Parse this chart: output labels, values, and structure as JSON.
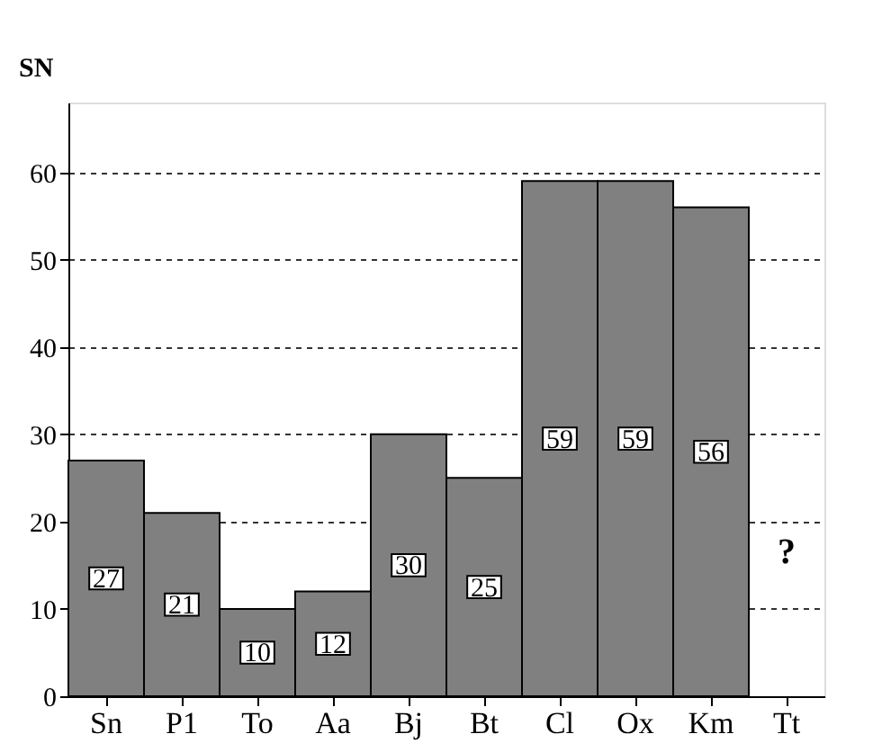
{
  "chart_data": {
    "type": "bar",
    "ylabel": "SN",
    "categories": [
      "Sn",
      "P1",
      "To",
      "Aa",
      "Bj",
      "Bt",
      "Cl",
      "Ox",
      "Km",
      "Tt"
    ],
    "values": [
      27,
      21,
      10,
      12,
      30,
      25,
      59,
      59,
      56,
      null
    ],
    "color": "#808080",
    "data_labels": true,
    "grid": "y",
    "ylim": [
      0,
      68
    ],
    "yticks": [
      0,
      10,
      20,
      30,
      40,
      50,
      60
    ],
    "annotations": [
      "?"
    ]
  }
}
